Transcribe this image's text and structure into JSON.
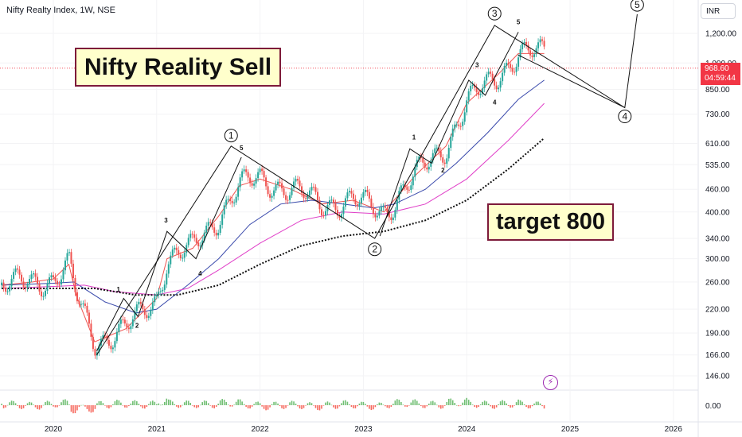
{
  "header": {
    "title": "Nifty Realty Index, 1W, NSE"
  },
  "annotations": {
    "sell_note": "Nifty Reality Sell",
    "target_note": "target 800"
  },
  "price_scale": {
    "currency": "INR",
    "last_price": "968.60",
    "countdown": "04:59:44",
    "last_price_color": "#f23645"
  },
  "indicator_icon": "flash-icon",
  "chart_data": {
    "type": "line",
    "title": "Nifty Realty Index, 1W, NSE",
    "y_scale": "log",
    "y_ticks": [
      "1,200.00",
      "1,000.00",
      "850.00",
      "730.00",
      "610.00",
      "535.00",
      "460.00",
      "400.00",
      "340.00",
      "300.00",
      "260.00",
      "220.00",
      "190.00",
      "166.00",
      "146.00"
    ],
    "x_ticks": [
      "2020",
      "2021",
      "2022",
      "2023",
      "2024",
      "2025",
      "2026"
    ],
    "oscillator_ticks": [
      "0.00"
    ],
    "last_price": 968.6,
    "series": [
      {
        "name": "",
        "color": "#ef5350",
        "x": [
          2019.5,
          2019.8,
          2020.0,
          2020.15,
          2020.22,
          2020.4,
          2020.7,
          2021.0,
          2021.1,
          2021.35,
          2021.6,
          2021.8,
          2022.0,
          2022.3,
          2022.6,
          2022.9,
          2023.2,
          2023.5,
          2023.8,
          2024.0,
          2024.3,
          2024.5,
          2024.75
        ],
        "values": [
          255,
          260,
          265,
          290,
          240,
          180,
          195,
          235,
          300,
          320,
          390,
          470,
          490,
          460,
          420,
          430,
          400,
          500,
          600,
          780,
          930,
          1060,
          1060
        ]
      },
      {
        "name": "",
        "color": "#3949ab",
        "x": [
          2019.5,
          2020.0,
          2020.2,
          2020.5,
          2020.8,
          2021.0,
          2021.3,
          2021.6,
          2021.9,
          2022.2,
          2022.5,
          2022.8,
          2023.1,
          2023.3,
          2023.6,
          2023.9,
          2024.2,
          2024.5,
          2024.75
        ],
        "values": [
          255,
          258,
          260,
          230,
          215,
          220,
          255,
          300,
          370,
          420,
          430,
          420,
          410,
          420,
          460,
          540,
          650,
          800,
          900
        ]
      },
      {
        "name": "",
        "color": "#e040c8",
        "x": [
          2019.5,
          2020.0,
          2020.3,
          2020.6,
          2021.0,
          2021.3,
          2021.6,
          2022.0,
          2022.4,
          2022.8,
          2023.2,
          2023.6,
          2024.0,
          2024.4,
          2024.75
        ],
        "values": [
          250,
          253,
          255,
          245,
          240,
          250,
          280,
          330,
          380,
          400,
          395,
          420,
          490,
          620,
          780
        ]
      },
      {
        "name": "",
        "color": "#111111",
        "dashed": true,
        "x": [
          2019.5,
          2020.0,
          2020.4,
          2020.8,
          2021.2,
          2021.6,
          2022.0,
          2022.4,
          2022.8,
          2023.2,
          2023.6,
          2024.0,
          2024.4,
          2024.75
        ],
        "values": [
          250,
          250,
          250,
          240,
          240,
          255,
          290,
          325,
          345,
          355,
          380,
          430,
          520,
          630
        ]
      }
    ],
    "wave_labels_major": [
      {
        "label": "1",
        "x": 2021.72,
        "y": 640
      },
      {
        "label": "2",
        "x": 2023.11,
        "y": 318
      },
      {
        "label": "3",
        "x": 2024.27,
        "y": 1355
      },
      {
        "label": "4",
        "x": 2025.53,
        "y": 720
      },
      {
        "label": "5",
        "x": 2025.65,
        "y": 1430
      }
    ],
    "wave_labels_minor": [
      {
        "label": "1",
        "x": 2020.63,
        "y": 245
      },
      {
        "label": "2",
        "x": 2020.81,
        "y": 196
      },
      {
        "label": "3",
        "x": 2021.09,
        "y": 375
      },
      {
        "label": "4",
        "x": 2021.42,
        "y": 270
      },
      {
        "label": "5",
        "x": 2021.82,
        "y": 585
      },
      {
        "label": "1",
        "x": 2023.49,
        "y": 625
      },
      {
        "label": "2",
        "x": 2023.77,
        "y": 510
      },
      {
        "label": "3",
        "x": 2024.1,
        "y": 975
      },
      {
        "label": "4",
        "x": 2024.27,
        "y": 775
      },
      {
        "label": "5",
        "x": 2024.5,
        "y": 1270
      }
    ],
    "wave_paths": [
      {
        "x": [
          2020.42,
          2021.72,
          2023.11,
          2024.27,
          2025.53,
          2025.65
        ],
        "values": [
          166,
          600,
          340,
          1260,
          760,
          1350
        ]
      },
      {
        "x": [
          2020.42,
          2020.68,
          2020.82,
          2021.1,
          2021.38,
          2021.82
        ],
        "values": [
          170,
          235,
          210,
          355,
          300,
          560
        ]
      },
      {
        "x": [
          2023.16,
          2023.45,
          2023.66,
          2024.02,
          2024.18,
          2024.5
        ],
        "values": [
          345,
          590,
          540,
          900,
          820,
          1210
        ]
      }
    ],
    "downtrend_line": {
      "x": [
        2024.5,
        2025.53
      ],
      "values": [
        1050,
        760
      ]
    },
    "grid": true
  }
}
